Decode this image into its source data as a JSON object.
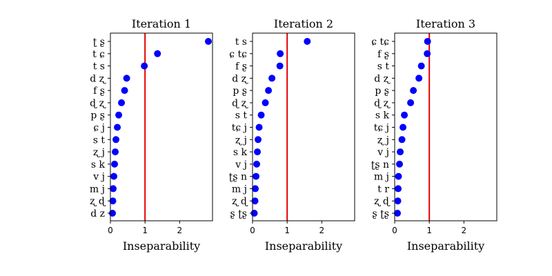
{
  "chart_data": [
    {
      "type": "scatter",
      "title": "Iteration 1",
      "xlabel": "Inseparability",
      "ylabel": "",
      "xlim": [
        0,
        2.95
      ],
      "xticks": [
        "0",
        "1",
        "2"
      ],
      "reference_line": {
        "x": 1.0,
        "color": "#e60000"
      },
      "marker_color": "#0000ff",
      "grid": false,
      "categories": [
        "ʈ ʂ",
        "t ɕ",
        "t s",
        "d ʐ",
        "f ʂ",
        "ɖ ʐ",
        "p ʂ",
        "ɕ j",
        "s t",
        "ʐ j",
        "s k",
        "v j",
        "m j",
        "ʐ ɖ",
        "d z"
      ],
      "values": [
        2.83,
        1.36,
        0.98,
        0.47,
        0.41,
        0.32,
        0.24,
        0.2,
        0.16,
        0.14,
        0.12,
        0.1,
        0.08,
        0.07,
        0.06
      ]
    },
    {
      "type": "scatter",
      "title": "Iteration 2",
      "xlabel": "Inseparability",
      "ylabel": "",
      "xlim": [
        0,
        2.95
      ],
      "xticks": [
        "0",
        "1",
        "2"
      ],
      "reference_line": {
        "x": 1.0,
        "color": "#e60000"
      },
      "marker_color": "#0000ff",
      "grid": false,
      "categories": [
        "t s",
        "ɕ tɕ",
        "f ʂ",
        "d ʐ",
        "p ʂ",
        "ɖ ʐ",
        "s t",
        "tɕ j",
        "ʐ j",
        "s k",
        "v j",
        "ʈʂ n",
        "m j",
        "ʐ ɖ",
        "ʂ ʈʂ"
      ],
      "values": [
        1.58,
        0.8,
        0.79,
        0.56,
        0.46,
        0.37,
        0.25,
        0.19,
        0.16,
        0.14,
        0.12,
        0.1,
        0.08,
        0.07,
        0.05
      ]
    },
    {
      "type": "scatter",
      "title": "Iteration 3",
      "xlabel": "Inseparability",
      "ylabel": "",
      "xlim": [
        0,
        2.95
      ],
      "xticks": [
        "0",
        "1",
        "2"
      ],
      "reference_line": {
        "x": 1.0,
        "color": "#e60000"
      },
      "marker_color": "#0000ff",
      "grid": false,
      "categories": [
        "ɕ tɕ",
        "f ʂ",
        "s t",
        "d ʐ",
        "p ʂ",
        "ɖ ʐ",
        "s k",
        "tɕ j",
        "ʐ j",
        "v j",
        "ʈʂ n",
        "m j",
        "t r",
        "ʐ ɖ",
        "ʂ ʈʂ"
      ],
      "values": [
        0.95,
        0.94,
        0.77,
        0.7,
        0.54,
        0.46,
        0.28,
        0.24,
        0.21,
        0.16,
        0.14,
        0.11,
        0.1,
        0.09,
        0.08
      ]
    }
  ]
}
